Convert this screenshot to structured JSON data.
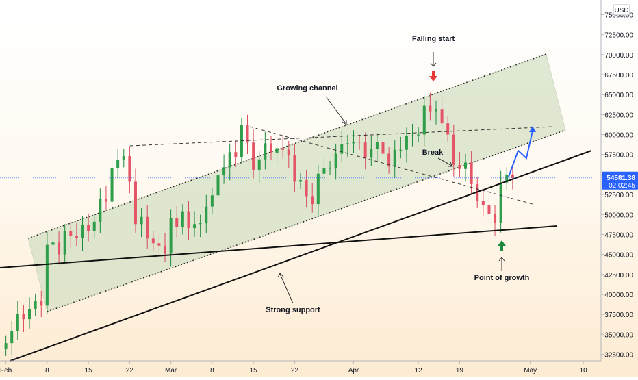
{
  "chart_data": {
    "type": "candlestick",
    "currency": "USD",
    "x_axis": {
      "tick_labels": [
        "Feb",
        "8",
        "15",
        "22",
        "Mar",
        "8",
        "15",
        "22",
        "Apr",
        "12",
        "19",
        "May",
        "10"
      ],
      "tick_dates": [
        "2021-02-01",
        "2021-02-08",
        "2021-02-15",
        "2021-02-22",
        "2021-03-01",
        "2021-03-08",
        "2021-03-15",
        "2021-03-22",
        "2021-04-01",
        "2021-04-12",
        "2021-04-19",
        "2021-05-01",
        "2021-05-10"
      ]
    },
    "y_axis": {
      "range": [
        31500,
        77500
      ],
      "tick_labels": [
        "32500.00",
        "35000.00",
        "37500.00",
        "40000.00",
        "42500.00",
        "45000.00",
        "47500.00",
        "50000.00",
        "52500.00",
        "55000.00",
        "57500.00",
        "60000.00",
        "62500.00",
        "65000.00",
        "67500.00",
        "70000.00",
        "72500.00",
        "75000.00"
      ],
      "tick_values": [
        32500,
        35000,
        37500,
        40000,
        42500,
        45000,
        47500,
        50000,
        52500,
        55000,
        57500,
        60000,
        62500,
        65000,
        67500,
        70000,
        72500,
        75000
      ]
    },
    "current_price": {
      "value": "54581.38",
      "countdown": "02:02:45",
      "price": 54581.38
    },
    "series": [
      {
        "points": [
          [
            "2021-02-01",
            33200,
            33900
          ],
          [
            "2021-02-02",
            33900,
            35400
          ],
          [
            "2021-02-03",
            35400,
            37600
          ],
          [
            "2021-02-04",
            37600,
            36900
          ],
          [
            "2021-02-05",
            36900,
            38200
          ],
          [
            "2021-02-06",
            38200,
            39200
          ],
          [
            "2021-02-07",
            39200,
            38600
          ],
          [
            "2021-02-08",
            38600,
            46200
          ],
          [
            "2021-02-09",
            46200,
            46500
          ],
          [
            "2021-02-10",
            46500,
            45000
          ],
          [
            "2021-02-11",
            45000,
            47900
          ],
          [
            "2021-02-12",
            47900,
            47300
          ],
          [
            "2021-02-13",
            47300,
            47100
          ],
          [
            "2021-02-14",
            47100,
            48700
          ],
          [
            "2021-02-15",
            48700,
            47900
          ],
          [
            "2021-02-16",
            47900,
            49100
          ],
          [
            "2021-02-17",
            49100,
            52000
          ],
          [
            "2021-02-18",
            52000,
            51600
          ],
          [
            "2021-02-19",
            51600,
            55800
          ],
          [
            "2021-02-20",
            55800,
            56800
          ],
          [
            "2021-02-21",
            56800,
            57300
          ],
          [
            "2021-02-22",
            57300,
            54100
          ],
          [
            "2021-02-23",
            54100,
            48800
          ],
          [
            "2021-02-24",
            48800,
            49700
          ],
          [
            "2021-02-25",
            49700,
            47000
          ],
          [
            "2021-02-26",
            47000,
            46400
          ],
          [
            "2021-02-27",
            46400,
            46100
          ],
          [
            "2021-02-28",
            46100,
            45100
          ],
          [
            "2021-03-01",
            45100,
            49600
          ],
          [
            "2021-03-02",
            49600,
            48400
          ],
          [
            "2021-03-03",
            48400,
            50400
          ],
          [
            "2021-03-04",
            50400,
            48300
          ],
          [
            "2021-03-05",
            48300,
            48800
          ],
          [
            "2021-03-06",
            48800,
            48900
          ],
          [
            "2021-03-07",
            48900,
            51000
          ],
          [
            "2021-03-08",
            51000,
            52400
          ],
          [
            "2021-03-09",
            52400,
            54900
          ],
          [
            "2021-03-10",
            54900,
            55900
          ],
          [
            "2021-03-11",
            55900,
            57800
          ],
          [
            "2021-03-12",
            57800,
            57200
          ],
          [
            "2021-03-13",
            57200,
            61200
          ],
          [
            "2021-03-14",
            61200,
            59000
          ],
          [
            "2021-03-15",
            59000,
            55600
          ],
          [
            "2021-03-16",
            55600,
            56900
          ],
          [
            "2021-03-17",
            56900,
            58900
          ],
          [
            "2021-03-18",
            58900,
            57700
          ],
          [
            "2021-03-19",
            57700,
            58300
          ],
          [
            "2021-03-20",
            58300,
            58100
          ],
          [
            "2021-03-21",
            58100,
            57400
          ],
          [
            "2021-03-22",
            57400,
            54100
          ],
          [
            "2021-03-23",
            54100,
            54300
          ],
          [
            "2021-03-24",
            54300,
            52300
          ],
          [
            "2021-03-25",
            52300,
            51300
          ],
          [
            "2021-03-26",
            51300,
            55100
          ],
          [
            "2021-03-27",
            55100,
            55800
          ],
          [
            "2021-03-28",
            55800,
            55800
          ],
          [
            "2021-03-29",
            55800,
            57600
          ],
          [
            "2021-03-30",
            57600,
            58800
          ],
          [
            "2021-03-31",
            58800,
            58900
          ],
          [
            "2021-04-01",
            58900,
            59100
          ],
          [
            "2021-04-02",
            59100,
            59000
          ],
          [
            "2021-04-03",
            59000,
            57100
          ],
          [
            "2021-04-04",
            57100,
            58200
          ],
          [
            "2021-04-05",
            58200,
            59100
          ],
          [
            "2021-04-06",
            59100,
            57600
          ],
          [
            "2021-04-07",
            57600,
            56000
          ],
          [
            "2021-04-08",
            56000,
            58100
          ],
          [
            "2021-04-09",
            58100,
            58100
          ],
          [
            "2021-04-10",
            58100,
            59800
          ],
          [
            "2021-04-11",
            59800,
            59900
          ],
          [
            "2021-04-12",
            59900,
            60000
          ],
          [
            "2021-04-13",
            60000,
            63600
          ],
          [
            "2021-04-14",
            63600,
            62900
          ],
          [
            "2021-04-15",
            62900,
            63200
          ],
          [
            "2021-04-16",
            63200,
            61400
          ],
          [
            "2021-04-17",
            61400,
            60000
          ],
          [
            "2021-04-18",
            60000,
            56200
          ],
          [
            "2021-04-19",
            56200,
            55700
          ],
          [
            "2021-04-20",
            55700,
            56500
          ],
          [
            "2021-04-21",
            56500,
            53800
          ],
          [
            "2021-04-22",
            53800,
            51700
          ],
          [
            "2021-04-23",
            51700,
            51200
          ],
          [
            "2021-04-24",
            51200,
            50100
          ],
          [
            "2021-04-25",
            50100,
            49000
          ],
          [
            "2021-04-26",
            49000,
            54000
          ],
          [
            "2021-04-27",
            54000,
            55000
          ],
          [
            "2021-04-28",
            55000,
            54581.38
          ]
        ]
      }
    ],
    "annotations": {
      "labels": [
        "Falling start",
        "Growing channel",
        "Break",
        "Strong support",
        "Point of growth"
      ]
    }
  }
}
